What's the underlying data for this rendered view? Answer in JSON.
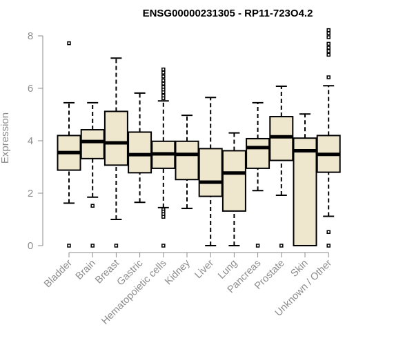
{
  "chart_data": {
    "type": "box",
    "title": "ENSG00000231305 - RP11-723O4.2",
    "ylabel": "Expression",
    "xlabel": "",
    "ylim": [
      0,
      8.3
    ],
    "yticks": [
      0,
      2,
      4,
      6,
      8
    ],
    "box_fill": "#efe7cd",
    "categories": [
      "Bladder",
      "Brain",
      "Breast",
      "Gastric",
      "Hematopoietic cells",
      "Kidney",
      "Liver",
      "Lung",
      "Pancreas",
      "Prostate",
      "Skin",
      "Unknown / Other"
    ],
    "boxes": [
      {
        "category": "Bladder",
        "whisker_low": 1.62,
        "q1": 2.88,
        "median": 3.55,
        "q3": 4.2,
        "whisker_high": 5.45,
        "outliers": [
          7.72,
          0.0
        ]
      },
      {
        "category": "Brain",
        "whisker_low": 1.85,
        "q1": 3.32,
        "median": 3.97,
        "q3": 4.42,
        "whisker_high": 5.45,
        "outliers": [
          1.52,
          0.0
        ]
      },
      {
        "category": "Breast",
        "whisker_low": 1.0,
        "q1": 3.07,
        "median": 3.92,
        "q3": 5.12,
        "whisker_high": 7.15,
        "outliers": [
          0.0
        ]
      },
      {
        "category": "Gastric",
        "whisker_low": 1.65,
        "q1": 2.78,
        "median": 3.47,
        "q3": 4.33,
        "whisker_high": 5.82,
        "outliers": []
      },
      {
        "category": "Hematopoietic cells",
        "whisker_low": 1.45,
        "q1": 2.95,
        "median": 3.5,
        "q3": 3.98,
        "whisker_high": 5.52,
        "outliers": [
          6.72,
          6.6,
          6.45,
          6.3,
          6.18,
          6.05,
          5.95,
          5.85,
          5.72,
          5.62,
          1.38,
          1.3,
          1.2,
          1.1,
          0.0
        ]
      },
      {
        "category": "Kidney",
        "whisker_low": 1.42,
        "q1": 2.52,
        "median": 3.48,
        "q3": 3.98,
        "whisker_high": 4.97,
        "outliers": []
      },
      {
        "category": "Liver",
        "whisker_low": 0.0,
        "q1": 1.88,
        "median": 2.42,
        "q3": 3.7,
        "whisker_high": 5.65,
        "outliers": []
      },
      {
        "category": "Lung",
        "whisker_low": 0.0,
        "q1": 1.32,
        "median": 2.77,
        "q3": 3.62,
        "whisker_high": 4.3,
        "outliers": []
      },
      {
        "category": "Pancreas",
        "whisker_low": 2.1,
        "q1": 2.95,
        "median": 3.74,
        "q3": 4.08,
        "whisker_high": 5.45,
        "outliers": [
          0.0
        ]
      },
      {
        "category": "Prostate",
        "whisker_low": 1.92,
        "q1": 3.25,
        "median": 4.15,
        "q3": 4.92,
        "whisker_high": 6.08,
        "outliers": [
          0.0
        ]
      },
      {
        "category": "Skin",
        "whisker_low": 0.0,
        "q1": 0.0,
        "median": 3.62,
        "q3": 4.1,
        "whisker_high": 5.02,
        "outliers": []
      },
      {
        "category": "Unknown / Other",
        "whisker_low": 1.12,
        "q1": 2.8,
        "median": 3.48,
        "q3": 4.2,
        "whisker_high": 6.1,
        "outliers": [
          8.22,
          8.1,
          7.95,
          7.7,
          7.55,
          7.42,
          7.28,
          6.42,
          0.52,
          0.0
        ]
      }
    ]
  }
}
